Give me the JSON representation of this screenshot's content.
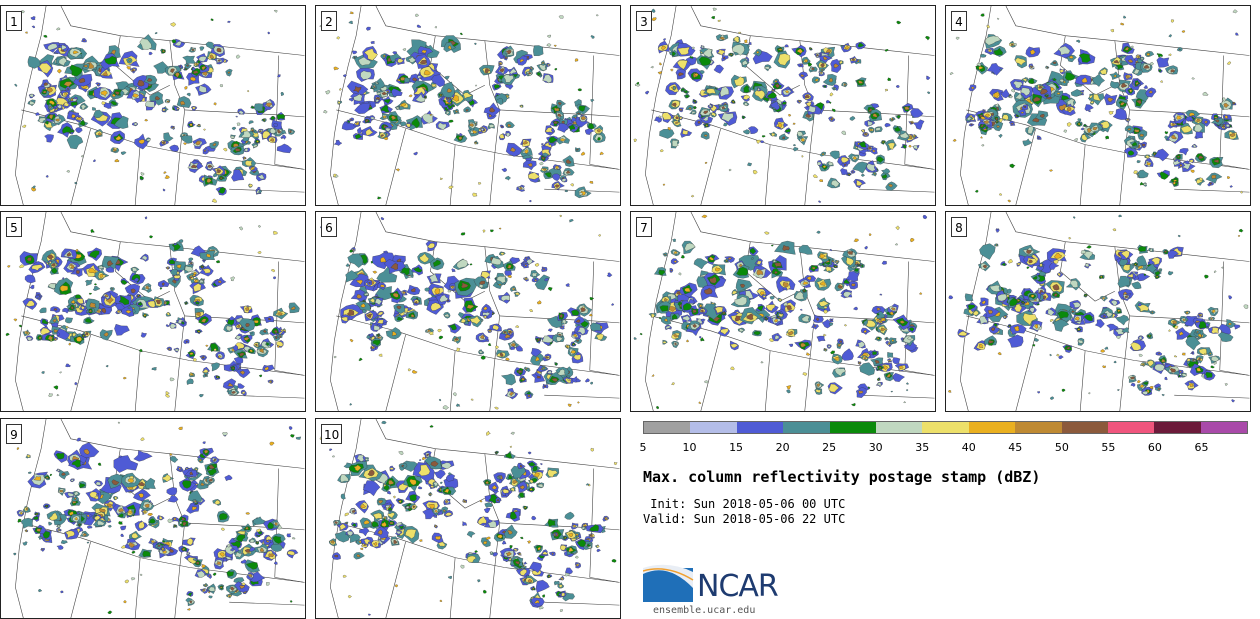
{
  "panels": [
    {
      "label": "1",
      "seed": 11
    },
    {
      "label": "2",
      "seed": 23
    },
    {
      "label": "3",
      "seed": 37
    },
    {
      "label": "4",
      "seed": 41
    },
    {
      "label": "5",
      "seed": 53
    },
    {
      "label": "6",
      "seed": 67
    },
    {
      "label": "7",
      "seed": 71
    },
    {
      "label": "8",
      "seed": 83
    },
    {
      "label": "9",
      "seed": 97
    },
    {
      "label": "10",
      "seed": 101
    }
  ],
  "colorbar": {
    "ticks": [
      "5",
      "10",
      "15",
      "20",
      "25",
      "30",
      "35",
      "40",
      "45",
      "50",
      "55",
      "60",
      "65"
    ],
    "colors": [
      "#a0a0a0",
      "#b4bde8",
      "#4f5bd5",
      "#4b8f96",
      "#0a8a0a",
      "#c0d8c0",
      "#ede06a",
      "#eab020",
      "#bf8a33",
      "#8c5a3c",
      "#f0557d",
      "#6c1a3a",
      "#a94aa9"
    ]
  },
  "title": "Max. column reflectivity postage stamp (dBZ)",
  "init": " Init: Sun 2018-05-06 00 UTC",
  "valid": "Valid: Sun 2018-05-06 22 UTC",
  "logo": {
    "text": "NCAR",
    "url": "ensemble.ucar.edu"
  }
}
